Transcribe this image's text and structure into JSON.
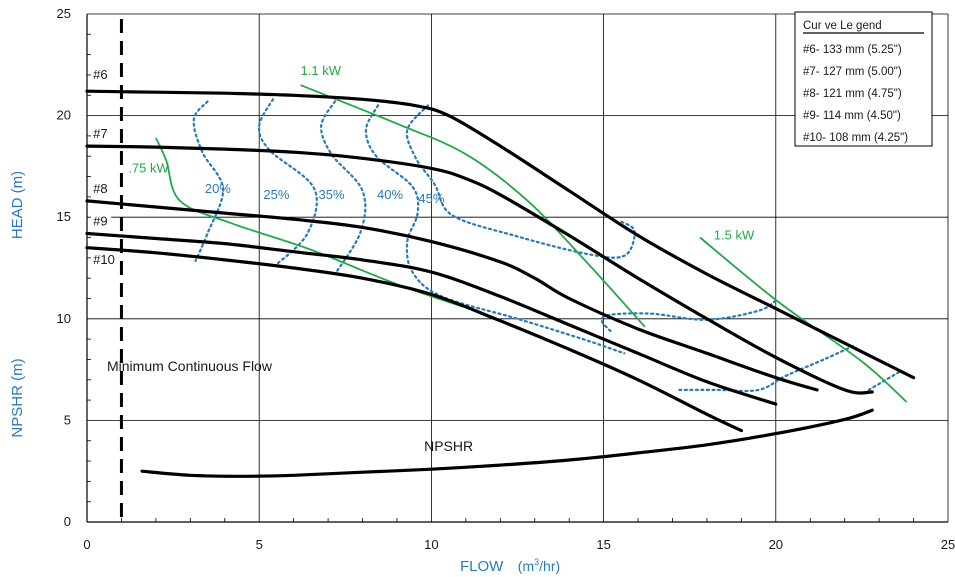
{
  "chart_data": {
    "type": "line",
    "xlabel": "FLOW",
    "xunit_base": "(m",
    "xunit_sup": "3",
    "xunit_tail": "/hr)",
    "ylabel_head": "HEAD (m)",
    "ylabel_npshr": "NPSHR (m)",
    "xlim": [
      0,
      25
    ],
    "ylim": [
      0,
      25
    ],
    "x_ticks": [
      "0",
      "5",
      "10",
      "15",
      "20",
      "25"
    ],
    "y_ticks": [
      "0",
      "5",
      "10",
      "15",
      "20",
      "25"
    ],
    "grid": true,
    "legend": {
      "title": "Cur ve Le gend",
      "placement": "top-right",
      "entries": [
        "#6- 133 mm (5.25\")",
        "#7- 127 mm (5.00\")",
        "#8- 121 mm (4.75\")",
        "#9- 114 mm (4.50\")",
        "#10- 108 mm (4.25\")"
      ]
    },
    "series": [
      {
        "name": "#6",
        "x": [
          0,
          2,
          4,
          6,
          8,
          9.5,
          10.5,
          12,
          14,
          16,
          18,
          20,
          22,
          24
        ],
        "y": [
          21.2,
          21.15,
          21.1,
          21.0,
          20.8,
          20.5,
          20.0,
          18.5,
          16.3,
          14.1,
          12.2,
          10.5,
          8.8,
          7.1
        ]
      },
      {
        "name": "#7",
        "x": [
          0,
          2,
          4,
          6,
          8,
          10,
          11,
          12,
          14,
          16,
          18,
          20,
          22,
          22.8
        ],
        "y": [
          18.5,
          18.45,
          18.35,
          18.2,
          17.9,
          17.4,
          16.9,
          16.1,
          14.1,
          12.0,
          10.0,
          8.1,
          6.5,
          6.4
        ]
      },
      {
        "name": "#8",
        "x": [
          0,
          2,
          4,
          6,
          8,
          10,
          12,
          13,
          14,
          16,
          18,
          20,
          21.2
        ],
        "y": [
          15.8,
          15.5,
          15.2,
          14.9,
          14.5,
          13.8,
          12.8,
          12.0,
          11.0,
          9.5,
          8.3,
          7.1,
          6.5
        ]
      },
      {
        "name": "#9",
        "x": [
          0,
          2,
          4,
          6,
          8,
          10,
          12,
          14,
          16,
          18,
          20
        ],
        "y": [
          14.2,
          13.95,
          13.7,
          13.3,
          12.9,
          12.3,
          11.1,
          9.7,
          8.3,
          6.9,
          5.8
        ]
      },
      {
        "name": "#10",
        "x": [
          0,
          2,
          4,
          6,
          8,
          10,
          12,
          14,
          16,
          18,
          19
        ],
        "y": [
          13.5,
          13.25,
          12.9,
          12.5,
          12.0,
          11.2,
          9.9,
          8.5,
          7.0,
          5.3,
          4.5
        ]
      },
      {
        "name": "NPSHR",
        "x": [
          1.6,
          3,
          4.5,
          6,
          8,
          10,
          12,
          14,
          16,
          18,
          20,
          22,
          22.8
        ],
        "y": [
          2.5,
          2.3,
          2.25,
          2.3,
          2.45,
          2.6,
          2.8,
          3.05,
          3.4,
          3.8,
          4.35,
          5.05,
          5.5
        ]
      }
    ],
    "npshr_label": {
      "text": "NPSHR",
      "x": 10.5,
      "y": 3.5
    },
    "curve_labels": [
      {
        "text": "#6",
        "x": 0.15,
        "y": 21.8
      },
      {
        "text": "#7",
        "x": 0.15,
        "y": 18.9
      },
      {
        "text": "#8",
        "x": 0.15,
        "y": 16.2
      },
      {
        "text": "#9",
        "x": 0.15,
        "y": 14.6
      },
      {
        "text": "#10",
        "x": 0.15,
        "y": 12.7
      }
    ],
    "efficiency_contours": [
      {
        "label": "20%",
        "label_x": 3.8,
        "label_y": 16.2,
        "x": [
          3.5,
          3.1,
          3.35,
          3.95,
          3.5,
          3.15
        ],
        "y": [
          20.7,
          19.8,
          18.2,
          16.4,
          14.2,
          12.85
        ]
      },
      {
        "label": "25%",
        "label_x": 5.5,
        "label_y": 15.9,
        "x": [
          5.4,
          5.0,
          5.3,
          6.6,
          6.4,
          5.45
        ],
        "y": [
          20.8,
          19.5,
          18.3,
          16.4,
          14.2,
          12.6
        ]
      },
      {
        "label": "35%",
        "label_x": 7.1,
        "label_y": 15.9,
        "x": [
          7.2,
          6.8,
          7.1,
          8.0,
          7.95,
          7.2
        ],
        "y": [
          20.7,
          19.5,
          18.1,
          16.3,
          14.3,
          12.2
        ]
      },
      {
        "label": "40%",
        "label_x": 8.8,
        "label_y": 15.9,
        "x": [
          8.45,
          8.1,
          8.4,
          9.45,
          9.6,
          9.3,
          9.45,
          10.3,
          12.5,
          14.4,
          15.6
        ],
        "y": [
          20.5,
          19.3,
          18.0,
          16.5,
          15.2,
          13.8,
          12.3,
          11.1,
          10.0,
          9.0,
          8.3
        ]
      },
      {
        "label": "45%",
        "label_x": 10.0,
        "label_y": 15.7,
        "x": [
          9.9,
          9.3,
          9.55,
          10.1,
          10.6,
          12.4,
          14.5,
          15.6,
          15.9,
          15.5
        ],
        "y": [
          20.5,
          19.3,
          17.9,
          16.6,
          15.1,
          14.1,
          13.2,
          13.1,
          14.3,
          14.8
        ]
      },
      {
        "label": "",
        "label_x": 0,
        "label_y": 0,
        "x": [
          15.2,
          14.95,
          15.2,
          16.4,
          18.0,
          19.5,
          20.0
        ],
        "y": [
          9.4,
          9.9,
          10.2,
          10.25,
          9.95,
          10.4,
          10.9
        ]
      },
      {
        "label": "",
        "label_x": 0,
        "label_y": 0,
        "x": [
          17.2,
          18.3,
          19.5,
          20.3,
          21.4,
          22.3
        ],
        "y": [
          6.5,
          6.5,
          6.5,
          7.2,
          8.0,
          8.7
        ]
      },
      {
        "label": "",
        "label_x": 0,
        "label_y": 0,
        "x": [
          22.7,
          23.6
        ],
        "y": [
          6.5,
          7.4
        ]
      }
    ],
    "power_lines": [
      {
        "label": ".75 kW",
        "label_x": 1.2,
        "label_y": 17.2,
        "x": [
          2.0,
          2.3,
          2.7,
          4.2,
          6.5,
          9.0,
          10.9
        ],
        "y": [
          18.9,
          17.8,
          15.8,
          14.7,
          13.4,
          11.7,
          10.6
        ]
      },
      {
        "label": "1.1 kW",
        "label_x": 6.2,
        "label_y": 22.0,
        "x": [
          6.2,
          9.0,
          11.0,
          12.8,
          14.5,
          16.2
        ],
        "y": [
          21.5,
          19.6,
          18.1,
          15.8,
          12.8,
          9.6
        ]
      },
      {
        "label": "1.5 kW",
        "label_x": 18.2,
        "label_y": 13.9,
        "x": [
          17.8,
          20.1,
          22.5,
          23.8
        ],
        "y": [
          14.0,
          10.8,
          7.9,
          5.9
        ]
      }
    ],
    "min_flow": {
      "x": 1.0,
      "label": "Minimum Continuous Flow"
    },
    "colors": {
      "curve": "#000000",
      "efficiency": "#2a7ab8",
      "power": "#22a84a",
      "grid": "#000000"
    }
  }
}
